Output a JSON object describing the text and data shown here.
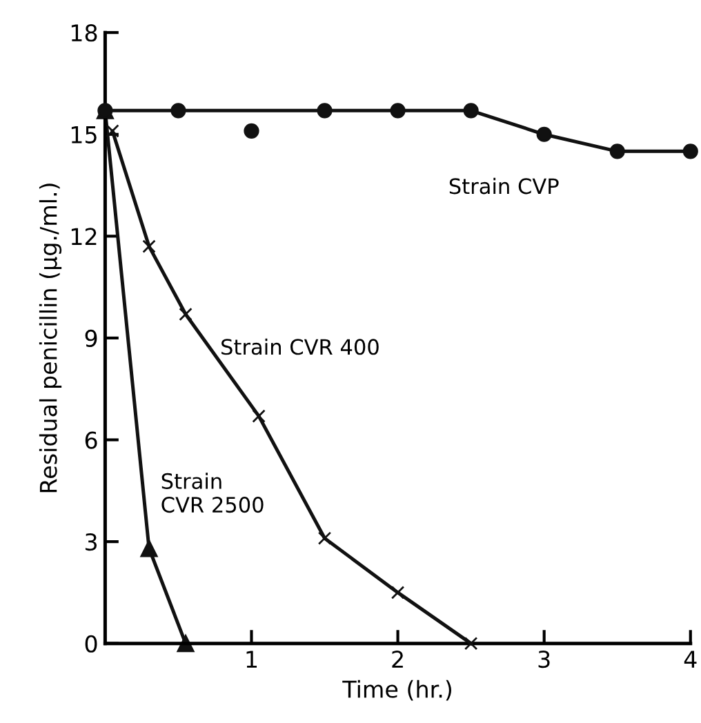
{
  "chart_data": {
    "type": "line",
    "xlabel": "Time (hr.)",
    "ylabel": "Residual penicillin (μg./ml.)",
    "xlim": [
      0,
      4
    ],
    "xticks": [
      1,
      2,
      3,
      4
    ],
    "ylim": [
      0,
      18
    ],
    "yticks": [
      0,
      3,
      6,
      9,
      12,
      15,
      18
    ],
    "grid": false,
    "legend": false,
    "series": [
      {
        "name": "Strain CVP",
        "color": "#111111",
        "marker": "circle",
        "x": [
          0,
          0.5,
          1.5,
          2,
          2.5,
          3,
          3.5,
          4
        ],
        "values": [
          15.7,
          15.7,
          15.7,
          15.7,
          15.7,
          15.0,
          14.5,
          14.5
        ]
      },
      {
        "type": "scatter",
        "color": "#111111",
        "marker": "circle",
        "x": [
          1
        ],
        "values": [
          15.1
        ]
      },
      {
        "name": "Strain CVR 400",
        "color": "#111111",
        "marker": "cross",
        "x": [
          0.05,
          0.3,
          0.55,
          1.05,
          1.5,
          2,
          2.5
        ],
        "values": [
          15.1,
          11.7,
          9.7,
          6.7,
          3.1,
          1.5,
          0
        ]
      },
      {
        "name": "Strain\nCVR 2500",
        "color": "#111111",
        "marker": "triangle",
        "x": [
          0,
          0.3,
          0.55
        ],
        "values": [
          15.7,
          2.8,
          0
        ]
      }
    ]
  }
}
